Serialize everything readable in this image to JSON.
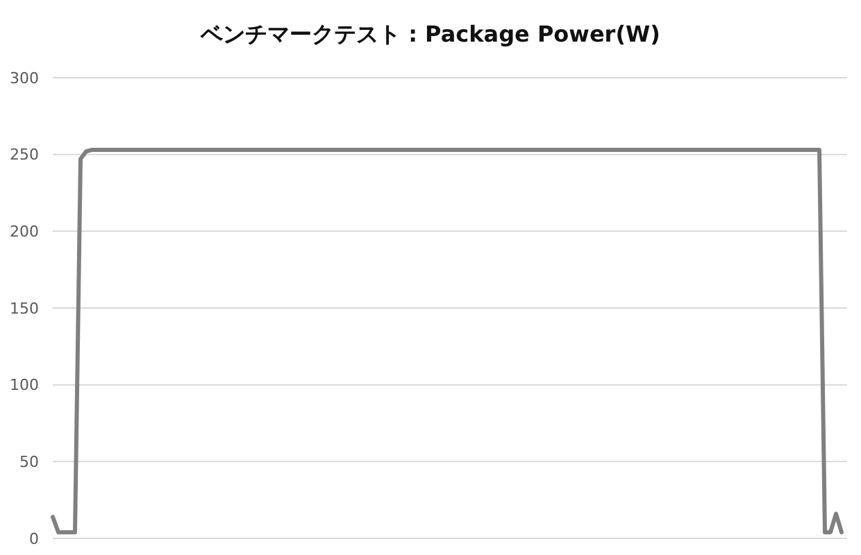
{
  "chart_data": {
    "type": "line",
    "title": "ベンチマークテスト : Package Power(W)",
    "categories": [
      null,
      null,
      null,
      null,
      null,
      null,
      null,
      null,
      null,
      null,
      null,
      null,
      null,
      null,
      null,
      null,
      null,
      null,
      null,
      null,
      null,
      null,
      null,
      null,
      null,
      null,
      null,
      null,
      null,
      null,
      null,
      null,
      null,
      null,
      null,
      null,
      null,
      null,
      null,
      null,
      null,
      null,
      null,
      null,
      null,
      null,
      null,
      null,
      null,
      null,
      null,
      null,
      null,
      null,
      null,
      null,
      null,
      null,
      null,
      null,
      null,
      null,
      null,
      null,
      null,
      null,
      null,
      null,
      null,
      null,
      null,
      null,
      null,
      null,
      null,
      null,
      null,
      null,
      null,
      null,
      null,
      null,
      null,
      null,
      null,
      null,
      null,
      null,
      null,
      null,
      null,
      null,
      null,
      null,
      null,
      null,
      null,
      null,
      null,
      null,
      null,
      null,
      null,
      null,
      null,
      null,
      null,
      null,
      null,
      null,
      null,
      null,
      null,
      null,
      null,
      null,
      null,
      null,
      null,
      null,
      null,
      null,
      null,
      null,
      null,
      null,
      null,
      null,
      null,
      null,
      null,
      null,
      null,
      null,
      null,
      null,
      null,
      null,
      null,
      null,
      null,
      null,
      null
    ],
    "series": [
      {
        "color": "#808080",
        "values": [
          14,
          4,
          4,
          4,
          4,
          247,
          252,
          253,
          253,
          253,
          253,
          253,
          253,
          253,
          253,
          253,
          253,
          253,
          253,
          253,
          253,
          253,
          253,
          253,
          253,
          253,
          253,
          253,
          253,
          253,
          253,
          253,
          253,
          253,
          253,
          253,
          253,
          253,
          253,
          253,
          253,
          253,
          253,
          253,
          253,
          253,
          253,
          253,
          253,
          253,
          253,
          253,
          253,
          253,
          253,
          253,
          253,
          253,
          253,
          253,
          253,
          253,
          253,
          253,
          253,
          253,
          253,
          253,
          253,
          253,
          253,
          253,
          253,
          253,
          253,
          253,
          253,
          253,
          253,
          253,
          253,
          253,
          253,
          253,
          253,
          253,
          253,
          253,
          253,
          253,
          253,
          253,
          253,
          253,
          253,
          253,
          253,
          253,
          253,
          253,
          253,
          253,
          253,
          253,
          253,
          253,
          253,
          253,
          253,
          253,
          253,
          253,
          253,
          253,
          253,
          253,
          253,
          253,
          253,
          253,
          253,
          253,
          253,
          253,
          253,
          253,
          253,
          253,
          253,
          253,
          253,
          253,
          253,
          253,
          253,
          253,
          253,
          253,
          253,
          4,
          4,
          16,
          4
        ]
      }
    ],
    "ylim": [
      0,
      300
    ],
    "yticks": [
      0,
      50,
      100,
      150,
      200,
      250,
      300
    ],
    "grid": "y",
    "tick_labels": "y",
    "line_style": "solid"
  }
}
